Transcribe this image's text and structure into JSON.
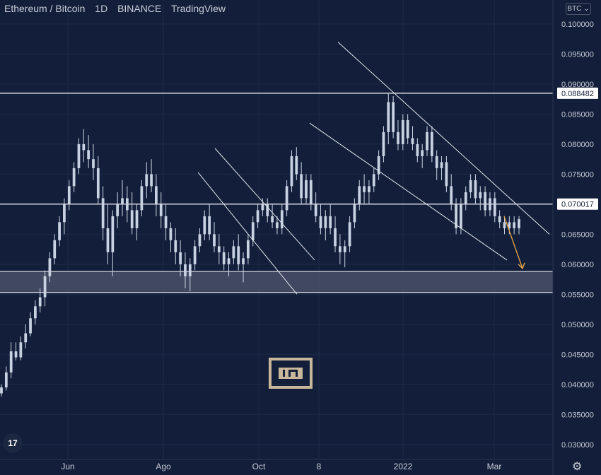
{
  "header": {
    "pair": "Ethereum / Bitcoin",
    "interval": "1D",
    "exchange": "BINANCE",
    "platform": "TradingView"
  },
  "currency_button": "BTC",
  "colors": {
    "background": "#131f3a",
    "grid": "#1c2a47",
    "candle": "#c9d2e3",
    "line": "#ffffff",
    "channel": "#dfe4ee",
    "zone": "#4a5068",
    "arrow": "#e0a045",
    "axis_text": "#c7cbd6",
    "label_bg": "#ffffff",
    "label_text": "#131f3a"
  },
  "chart_data": {
    "type": "candlestick",
    "title": "Ethereum / Bitcoin",
    "xlabel": "",
    "ylabel": "",
    "ylim": [
      0.0275,
      0.104
    ],
    "y_ticks": [
      "0.030000",
      "0.035000",
      "0.040000",
      "0.045000",
      "0.050000",
      "0.055000",
      "0.060000",
      "0.065000",
      "0.070000",
      "0.075000",
      "0.080000",
      "0.085000",
      "0.090000",
      "0.095000",
      "0.100000"
    ],
    "x_ticks": [
      "Jun",
      "Ago",
      "Oct",
      "8",
      "2022",
      "Mar"
    ],
    "price_labels": [
      "0.088482",
      "0.070017"
    ],
    "horizontal_lines": [
      0.088482,
      0.070017
    ],
    "zone": {
      "low": 0.0553,
      "high": 0.0588
    },
    "grid": true,
    "series": [
      {
        "values": [
          [
            0.0385,
            0.04,
            0.038,
            0.0395
          ],
          [
            0.0395,
            0.043,
            0.039,
            0.042
          ],
          [
            0.042,
            0.047,
            0.041,
            0.0455
          ],
          [
            0.0455,
            0.047,
            0.044,
            0.0445
          ],
          [
            0.0445,
            0.048,
            0.044,
            0.047
          ],
          [
            0.047,
            0.05,
            0.046,
            0.0485
          ],
          [
            0.0485,
            0.052,
            0.048,
            0.051
          ],
          [
            0.051,
            0.054,
            0.05,
            0.053
          ],
          [
            0.053,
            0.056,
            0.052,
            0.0545
          ],
          [
            0.0545,
            0.059,
            0.053,
            0.058
          ],
          [
            0.058,
            0.062,
            0.057,
            0.061
          ],
          [
            0.061,
            0.065,
            0.06,
            0.064
          ],
          [
            0.064,
            0.068,
            0.063,
            0.067
          ],
          [
            0.067,
            0.071,
            0.065,
            0.07
          ],
          [
            0.07,
            0.074,
            0.069,
            0.073
          ],
          [
            0.073,
            0.077,
            0.072,
            0.076
          ],
          [
            0.076,
            0.081,
            0.075,
            0.08
          ],
          [
            0.08,
            0.0825,
            0.077,
            0.079
          ],
          [
            0.079,
            0.0815,
            0.076,
            0.0775
          ],
          [
            0.0775,
            0.08,
            0.074,
            0.076
          ],
          [
            0.076,
            0.078,
            0.07,
            0.071
          ],
          [
            0.071,
            0.073,
            0.064,
            0.066
          ],
          [
            0.066,
            0.07,
            0.06,
            0.062
          ],
          [
            0.062,
            0.069,
            0.058,
            0.068
          ],
          [
            0.068,
            0.072,
            0.066,
            0.07
          ],
          [
            0.07,
            0.074,
            0.068,
            0.071
          ],
          [
            0.071,
            0.073,
            0.067,
            0.069
          ],
          [
            0.069,
            0.072,
            0.065,
            0.066
          ],
          [
            0.066,
            0.07,
            0.064,
            0.069
          ],
          [
            0.069,
            0.074,
            0.068,
            0.073
          ],
          [
            0.073,
            0.077,
            0.071,
            0.075
          ],
          [
            0.075,
            0.0775,
            0.072,
            0.073
          ],
          [
            0.073,
            0.075,
            0.068,
            0.07
          ],
          [
            0.07,
            0.072,
            0.066,
            0.068
          ],
          [
            0.068,
            0.07,
            0.064,
            0.066
          ],
          [
            0.066,
            0.067,
            0.062,
            0.064
          ],
          [
            0.064,
            0.066,
            0.06,
            0.062
          ],
          [
            0.062,
            0.064,
            0.058,
            0.06
          ],
          [
            0.06,
            0.062,
            0.056,
            0.058
          ],
          [
            0.058,
            0.061,
            0.0555,
            0.06
          ],
          [
            0.06,
            0.064,
            0.059,
            0.063
          ],
          [
            0.063,
            0.066,
            0.062,
            0.065
          ],
          [
            0.065,
            0.069,
            0.064,
            0.068
          ],
          [
            0.068,
            0.07,
            0.064,
            0.065
          ],
          [
            0.065,
            0.067,
            0.062,
            0.063
          ],
          [
            0.063,
            0.065,
            0.06,
            0.062
          ],
          [
            0.062,
            0.063,
            0.059,
            0.06
          ],
          [
            0.06,
            0.062,
            0.058,
            0.061
          ],
          [
            0.061,
            0.064,
            0.06,
            0.063
          ],
          [
            0.063,
            0.065,
            0.059,
            0.06
          ],
          [
            0.06,
            0.062,
            0.057,
            0.061
          ],
          [
            0.061,
            0.065,
            0.06,
            0.064
          ],
          [
            0.064,
            0.068,
            0.063,
            0.067
          ],
          [
            0.067,
            0.07,
            0.066,
            0.069
          ],
          [
            0.069,
            0.071,
            0.068,
            0.07
          ],
          [
            0.07,
            0.071,
            0.067,
            0.068
          ],
          [
            0.068,
            0.07,
            0.066,
            0.067
          ],
          [
            0.067,
            0.068,
            0.065,
            0.066
          ],
          [
            0.066,
            0.07,
            0.065,
            0.069
          ],
          [
            0.069,
            0.074,
            0.068,
            0.073
          ],
          [
            0.073,
            0.079,
            0.072,
            0.078
          ],
          [
            0.078,
            0.0795,
            0.074,
            0.075
          ],
          [
            0.075,
            0.077,
            0.07,
            0.071
          ],
          [
            0.071,
            0.075,
            0.07,
            0.074
          ],
          [
            0.074,
            0.075,
            0.069,
            0.07
          ],
          [
            0.07,
            0.072,
            0.067,
            0.068
          ],
          [
            0.068,
            0.07,
            0.065,
            0.066
          ],
          [
            0.066,
            0.069,
            0.064,
            0.068
          ],
          [
            0.068,
            0.07,
            0.065,
            0.066
          ],
          [
            0.066,
            0.068,
            0.062,
            0.063
          ],
          [
            0.063,
            0.065,
            0.06,
            0.062
          ],
          [
            0.062,
            0.064,
            0.0595,
            0.063
          ],
          [
            0.063,
            0.068,
            0.062,
            0.067
          ],
          [
            0.067,
            0.071,
            0.066,
            0.07
          ],
          [
            0.07,
            0.074,
            0.069,
            0.073
          ],
          [
            0.073,
            0.075,
            0.07,
            0.072
          ],
          [
            0.072,
            0.074,
            0.07,
            0.073
          ],
          [
            0.073,
            0.076,
            0.072,
            0.075
          ],
          [
            0.075,
            0.079,
            0.074,
            0.078
          ],
          [
            0.078,
            0.083,
            0.077,
            0.082
          ],
          [
            0.082,
            0.0885,
            0.08,
            0.087
          ],
          [
            0.087,
            0.088,
            0.081,
            0.082
          ],
          [
            0.082,
            0.084,
            0.079,
            0.08
          ],
          [
            0.08,
            0.085,
            0.079,
            0.084
          ],
          [
            0.084,
            0.085,
            0.08,
            0.081
          ],
          [
            0.081,
            0.083,
            0.079,
            0.08
          ],
          [
            0.08,
            0.081,
            0.077,
            0.078
          ],
          [
            0.078,
            0.08,
            0.076,
            0.079
          ],
          [
            0.079,
            0.083,
            0.078,
            0.082
          ],
          [
            0.082,
            0.083,
            0.077,
            0.078
          ],
          [
            0.078,
            0.079,
            0.074,
            0.076
          ],
          [
            0.076,
            0.078,
            0.074,
            0.077
          ],
          [
            0.077,
            0.078,
            0.072,
            0.073
          ],
          [
            0.073,
            0.075,
            0.069,
            0.07
          ],
          [
            0.07,
            0.071,
            0.065,
            0.066
          ],
          [
            0.066,
            0.071,
            0.065,
            0.07
          ],
          [
            0.07,
            0.073,
            0.069,
            0.072
          ],
          [
            0.072,
            0.075,
            0.071,
            0.074
          ],
          [
            0.074,
            0.075,
            0.07,
            0.071
          ],
          [
            0.071,
            0.073,
            0.069,
            0.072
          ],
          [
            0.072,
            0.073,
            0.068,
            0.069
          ],
          [
            0.069,
            0.072,
            0.068,
            0.071
          ],
          [
            0.071,
            0.072,
            0.067,
            0.068
          ],
          [
            0.068,
            0.069,
            0.066,
            0.067
          ],
          [
            0.067,
            0.068,
            0.065,
            0.066
          ],
          [
            0.066,
            0.068,
            0.065,
            0.067
          ],
          [
            0.067,
            0.068,
            0.065,
            0.066
          ],
          [
            0.066,
            0.068,
            0.065,
            0.0675
          ]
        ]
      }
    ],
    "channels": [
      [
        [
          0.097,
          0.0878
        ],
        [
          0.065,
          0.0637
        ]
      ],
      [
        [
          0.0835,
          0.0823
        ],
        [
          0.0607,
          0.0595
        ]
      ],
      [
        [
          0.0793,
          0.0782
        ],
        [
          0.0607,
          0.0596
        ]
      ],
      [
        [
          0.0753,
          0.0742
        ],
        [
          0.055,
          0.0539
        ]
      ]
    ],
    "arrow": {
      "from": 0.068,
      "to": 0.0593
    }
  }
}
